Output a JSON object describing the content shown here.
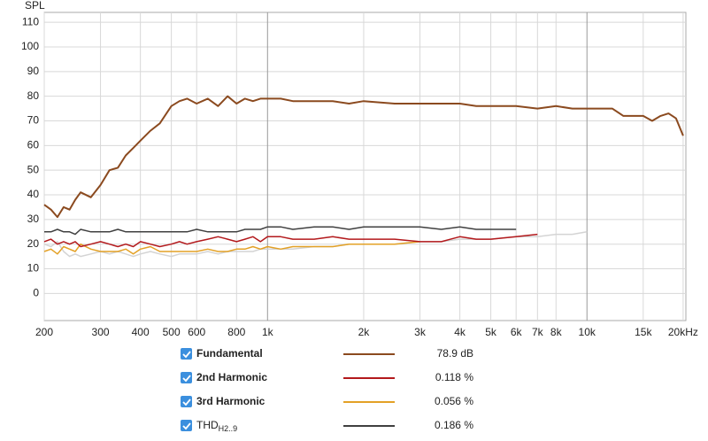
{
  "chart_data": {
    "type": "line",
    "y_label": "SPL",
    "xscale": "log",
    "grid": true,
    "xlim": [
      200,
      20400
    ],
    "ylim": [
      -11,
      114
    ],
    "xticks": [
      200,
      300,
      400,
      500,
      600,
      800,
      {
        "value": 1000,
        "label": "1k"
      },
      {
        "value": 2000,
        "label": "2k"
      },
      {
        "value": 3000,
        "label": "3k"
      },
      {
        "value": 4000,
        "label": "4k"
      },
      {
        "value": 5000,
        "label": "5k"
      },
      {
        "value": 6000,
        "label": "6k"
      },
      {
        "value": 7000,
        "label": "7k"
      },
      {
        "value": 8000,
        "label": "8k"
      },
      {
        "value": 10000,
        "label": "10k"
      },
      {
        "value": 15000,
        "label": "15k"
      },
      {
        "value": 20000,
        "label": "20kHz"
      }
    ],
    "yticks": [
      0,
      10,
      20,
      30,
      40,
      50,
      60,
      70,
      80,
      90,
      100,
      110
    ],
    "x": [
      200,
      210,
      220,
      230,
      240,
      250,
      260,
      280,
      300,
      320,
      340,
      360,
      380,
      400,
      430,
      460,
      500,
      530,
      560,
      600,
      650,
      700,
      750,
      800,
      850,
      900,
      950,
      1000,
      1100,
      1200,
      1400,
      1600,
      1800,
      2000,
      2500,
      3000,
      3500,
      4000,
      4500,
      5000,
      6000,
      7000,
      8000,
      9000,
      10000,
      11000,
      12000,
      13000,
      14000,
      15000,
      16000,
      17000,
      18000,
      19000,
      20000
    ],
    "series": [
      {
        "color": "#d4d4d4",
        "values": [
          20,
          19,
          21,
          17,
          15,
          16,
          15,
          16,
          17,
          16,
          17,
          16,
          15,
          16,
          17,
          16,
          15,
          16,
          16,
          16,
          17,
          16,
          17,
          17,
          17,
          17,
          18,
          18,
          18,
          18,
          19,
          19,
          20,
          20,
          20,
          21,
          21,
          22,
          22,
          22,
          23,
          23,
          24,
          24,
          25,
          null,
          null,
          null,
          null,
          null,
          null,
          null,
          null,
          null,
          null
        ]
      },
      {
        "name": "3rd Harmonic",
        "color": "#e3a126",
        "reading": "0.056 %",
        "values": [
          17,
          18,
          16,
          19,
          18,
          17,
          20,
          18,
          17,
          17,
          17,
          18,
          16,
          18,
          19,
          17,
          17,
          17,
          17,
          17,
          18,
          17,
          17,
          18,
          18,
          19,
          18,
          19,
          18,
          19,
          19,
          19,
          20,
          20,
          20,
          21,
          null,
          null,
          null,
          null,
          null,
          null,
          null,
          null,
          null,
          null,
          null,
          null,
          null,
          null,
          null,
          null,
          null,
          null,
          null
        ]
      },
      {
        "name": "2nd Harmonic",
        "color": "#b3191c",
        "reading": "0.118 %",
        "values": [
          21,
          22,
          20,
          21,
          20,
          21,
          19,
          20,
          21,
          20,
          19,
          20,
          19,
          21,
          20,
          19,
          20,
          21,
          20,
          21,
          22,
          23,
          22,
          21,
          22,
          23,
          21,
          23,
          23,
          22,
          22,
          23,
          22,
          22,
          22,
          21,
          21,
          23,
          22,
          22,
          23,
          24,
          null,
          null,
          null,
          null,
          null,
          null,
          null,
          null,
          null,
          null,
          null,
          null,
          null
        ]
      },
      {
        "name": "THD",
        "name_subscript": "H2..9",
        "color": "#404040",
        "reading": "0.186 %",
        "values": [
          25,
          25,
          26,
          25,
          25,
          24,
          26,
          25,
          25,
          25,
          26,
          25,
          25,
          25,
          25,
          25,
          25,
          25,
          25,
          26,
          25,
          25,
          25,
          25,
          26,
          26,
          26,
          27,
          27,
          26,
          27,
          27,
          26,
          27,
          27,
          27,
          26,
          27,
          26,
          26,
          26,
          null,
          null,
          null,
          null,
          null,
          null,
          null,
          null,
          null,
          null,
          null,
          null,
          null,
          null
        ]
      },
      {
        "name": "Fundamental",
        "color": "#8b4a1f",
        "reading": "78.9 dB",
        "values": [
          36,
          34,
          31,
          35,
          34,
          38,
          41,
          39,
          44,
          50,
          51,
          56,
          59,
          62,
          66,
          69,
          76,
          78,
          79,
          77,
          79,
          76,
          80,
          77,
          79,
          78,
          79,
          79,
          79,
          78,
          78,
          78,
          77,
          78,
          77,
          77,
          77,
          77,
          76,
          76,
          76,
          75,
          76,
          75,
          75,
          75,
          75,
          72,
          72,
          72,
          70,
          72,
          73,
          71,
          64
        ]
      }
    ],
    "legend_order": [
      4,
      2,
      1,
      3
    ]
  }
}
